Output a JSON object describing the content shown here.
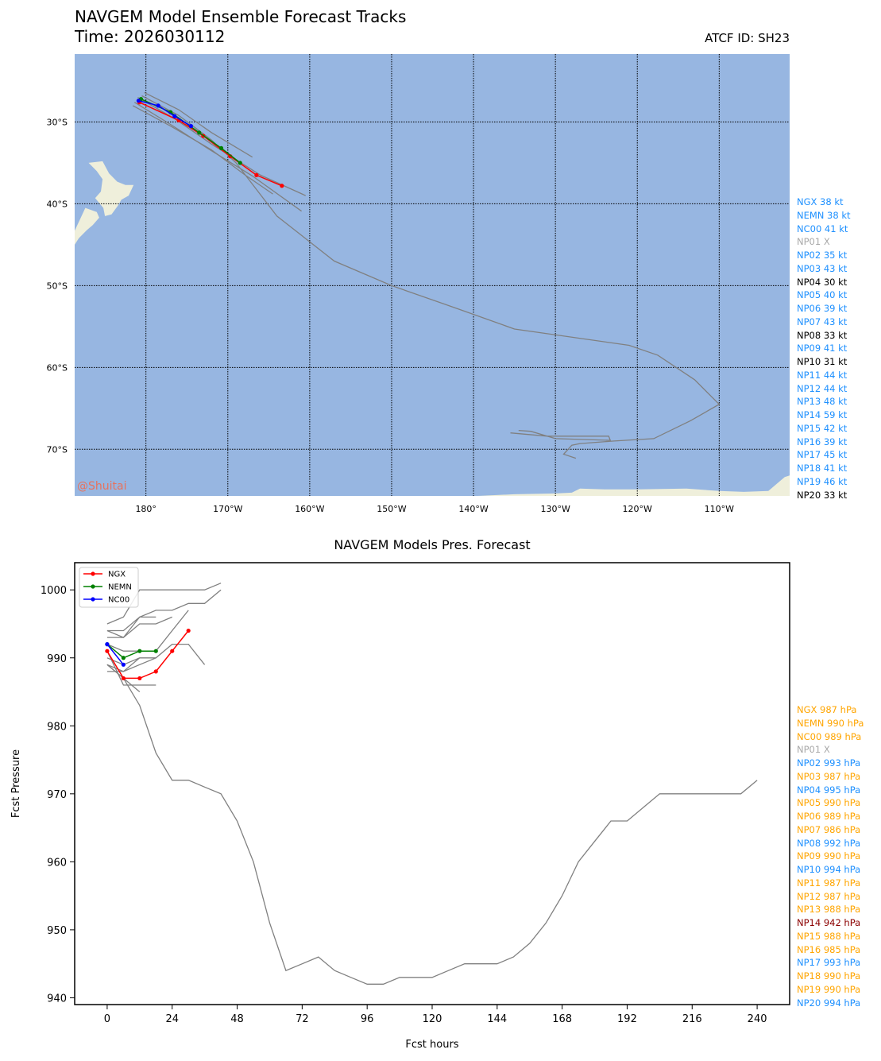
{
  "header": {
    "title": "NAVGEM Model Ensemble Forecast Tracks",
    "time": "Time: 2026030112",
    "atcf": "ATCF ID: SH23"
  },
  "watermark": "@Shuitai",
  "colors": {
    "ocean": "#97b6e1",
    "land": "#efefdb",
    "member": "#808080",
    "NGX": "#ff0000",
    "NEMN": "#008000",
    "NC00": "#0000ff",
    "blue_text": "#1e90ff",
    "orange_text": "#ffa500",
    "gray_text": "#a9a9a9",
    "dark_red_text": "#8b0000"
  },
  "track_intensity_list": [
    {
      "text": "NGX 38 kt",
      "color": "#1e90ff"
    },
    {
      "text": "NEMN 38 kt",
      "color": "#1e90ff"
    },
    {
      "text": "NC00 41 kt",
      "color": "#1e90ff"
    },
    {
      "text": "NP01 X",
      "color": "#a9a9a9"
    },
    {
      "text": "NP02 35 kt",
      "color": "#1e90ff"
    },
    {
      "text": "NP03 43 kt",
      "color": "#1e90ff"
    },
    {
      "text": "NP04 30 kt",
      "color": "#000000"
    },
    {
      "text": "NP05 40 kt",
      "color": "#1e90ff"
    },
    {
      "text": "NP06 39 kt",
      "color": "#1e90ff"
    },
    {
      "text": "NP07 43 kt",
      "color": "#1e90ff"
    },
    {
      "text": "NP08 33 kt",
      "color": "#000000"
    },
    {
      "text": "NP09 41 kt",
      "color": "#1e90ff"
    },
    {
      "text": "NP10 31 kt",
      "color": "#000000"
    },
    {
      "text": "NP11 44 kt",
      "color": "#1e90ff"
    },
    {
      "text": "NP12 44 kt",
      "color": "#1e90ff"
    },
    {
      "text": "NP13 48 kt",
      "color": "#1e90ff"
    },
    {
      "text": "NP14 59 kt",
      "color": "#1e90ff"
    },
    {
      "text": "NP15 42 kt",
      "color": "#1e90ff"
    },
    {
      "text": "NP16 39 kt",
      "color": "#1e90ff"
    },
    {
      "text": "NP17 45 kt",
      "color": "#1e90ff"
    },
    {
      "text": "NP18 41 kt",
      "color": "#1e90ff"
    },
    {
      "text": "NP19 46 kt",
      "color": "#1e90ff"
    },
    {
      "text": "NP20 33 kt",
      "color": "#000000"
    }
  ],
  "pressure_list": [
    {
      "text": "NGX 987 hPa",
      "color": "#ffa500"
    },
    {
      "text": "NEMN 990 hPa",
      "color": "#ffa500"
    },
    {
      "text": "NC00 989 hPa",
      "color": "#ffa500"
    },
    {
      "text": "NP01 X",
      "color": "#a9a9a9"
    },
    {
      "text": "NP02 993 hPa",
      "color": "#1e90ff"
    },
    {
      "text": "NP03 987 hPa",
      "color": "#ffa500"
    },
    {
      "text": "NP04 995 hPa",
      "color": "#1e90ff"
    },
    {
      "text": "NP05 990 hPa",
      "color": "#ffa500"
    },
    {
      "text": "NP06 989 hPa",
      "color": "#ffa500"
    },
    {
      "text": "NP07 986 hPa",
      "color": "#ffa500"
    },
    {
      "text": "NP08 992 hPa",
      "color": "#1e90ff"
    },
    {
      "text": "NP09 990 hPa",
      "color": "#ffa500"
    },
    {
      "text": "NP10 994 hPa",
      "color": "#1e90ff"
    },
    {
      "text": "NP11 987 hPa",
      "color": "#ffa500"
    },
    {
      "text": "NP12 987 hPa",
      "color": "#ffa500"
    },
    {
      "text": "NP13 988 hPa",
      "color": "#ffa500"
    },
    {
      "text": "NP14 942 hPa",
      "color": "#8b0000"
    },
    {
      "text": "NP15 988 hPa",
      "color": "#ffa500"
    },
    {
      "text": "NP16 985 hPa",
      "color": "#ffa500"
    },
    {
      "text": "NP17 993 hPa",
      "color": "#1e90ff"
    },
    {
      "text": "NP18 990 hPa",
      "color": "#ffa500"
    },
    {
      "text": "NP19 990 hPa",
      "color": "#ffa500"
    },
    {
      "text": "NP20 994 hPa",
      "color": "#1e90ff"
    }
  ],
  "chart_data": [
    {
      "type": "map-tracks",
      "lon_ticks": [
        180,
        -170,
        -160,
        -150,
        -140,
        -130,
        -120,
        -110
      ],
      "lon_tick_labels": [
        "180°",
        "170°W",
        "160°W",
        "150°W",
        "140°W",
        "130°W",
        "120°W",
        "110°W"
      ],
      "lat_ticks": [
        -30,
        -40,
        -50,
        -60,
        -70
      ],
      "lat_tick_labels": [
        "30°S",
        "40°S",
        "50°S",
        "60°S",
        "70°S"
      ],
      "lon_range": [
        171.3,
        -101.4
      ],
      "lat_range": [
        -21.7,
        -75.7
      ],
      "grid": true,
      "land": [
        {
          "name": "new-zealand-north-island",
          "points": [
            [
              174.7,
              -34.8
            ],
            [
              175.5,
              -36.3
            ],
            [
              176.5,
              -37.3
            ],
            [
              177.5,
              -37.7
            ],
            [
              178.5,
              -37.7
            ],
            [
              177.9,
              -39.0
            ],
            [
              177.0,
              -39.5
            ],
            [
              176.6,
              -40.2
            ],
            [
              175.8,
              -41.3
            ],
            [
              175.0,
              -41.5
            ],
            [
              174.8,
              -40.5
            ],
            [
              173.8,
              -39.3
            ],
            [
              174.5,
              -38.5
            ],
            [
              174.7,
              -37.0
            ],
            [
              174.0,
              -36.0
            ],
            [
              173.0,
              -35.0
            ]
          ]
        },
        {
          "name": "new-zealand-south-island",
          "points": [
            [
              172.6,
              -40.5
            ],
            [
              174.0,
              -41.0
            ],
            [
              174.3,
              -41.7
            ],
            [
              173.5,
              -42.6
            ],
            [
              172.8,
              -43.2
            ],
            [
              171.8,
              -44.2
            ],
            [
              171.3,
              -45.0
            ],
            [
              171.3,
              -43.3
            ],
            [
              172.0,
              -41.8
            ]
          ]
        },
        {
          "name": "antarctic-coast",
          "points": [
            [
              -139.5,
              -75.7
            ],
            [
              -135.0,
              -75.5
            ],
            [
              -130.0,
              -75.4
            ],
            [
              -128.0,
              -75.3
            ],
            [
              -127.0,
              -74.8
            ],
            [
              -124.0,
              -74.9
            ],
            [
              -120.0,
              -74.9
            ],
            [
              -114.0,
              -74.8
            ],
            [
              -110.0,
              -75.1
            ],
            [
              -107.0,
              -75.2
            ],
            [
              -104.0,
              -75.1
            ],
            [
              -102.0,
              -73.4
            ],
            [
              -101.4,
              -73.2
            ],
            [
              -101.4,
              -75.7
            ]
          ]
        }
      ],
      "tracks": [
        {
          "name": "NGX",
          "color": "#ff0000",
          "markers": true,
          "points": [
            [
              179.2,
              -27.6
            ],
            [
              -176.0,
              -29.8
            ],
            [
              -173.0,
              -31.7
            ],
            [
              -169.7,
              -34.2
            ],
            [
              -166.5,
              -36.5
            ],
            [
              -163.4,
              -37.8
            ]
          ]
        },
        {
          "name": "NEMN",
          "color": "#008000",
          "markers": true,
          "points": [
            [
              179.4,
              -27.2
            ],
            [
              -177.0,
              -28.8
            ],
            [
              -173.5,
              -31.3
            ],
            [
              -170.8,
              -33.2
            ],
            [
              -168.5,
              -35.0
            ]
          ]
        },
        {
          "name": "NC00",
          "color": "#0000ff",
          "markers": true,
          "points": [
            [
              179.1,
              -27.4
            ],
            [
              -178.5,
              -28.0
            ],
            [
              -176.5,
              -29.3
            ],
            [
              -174.5,
              -30.5
            ]
          ]
        },
        {
          "name": "member",
          "color": "#808080",
          "markers": false,
          "points": [
            [
              179.8,
              -26.4
            ],
            [
              -176.0,
              -28.5
            ],
            [
              -172.0,
              -31.3
            ],
            [
              -167.0,
              -34.3
            ]
          ]
        },
        {
          "name": "member",
          "color": "#808080",
          "markers": false,
          "points": [
            [
              179.0,
              -27.0
            ],
            [
              -176.5,
              -29.6
            ],
            [
              -172.0,
              -32.7
            ],
            [
              -166.0,
              -36.5
            ],
            [
              -160.5,
              -39.0
            ]
          ]
        },
        {
          "name": "member",
          "color": "#808080",
          "markers": false,
          "points": [
            [
              178.6,
              -27.6
            ],
            [
              -177.0,
              -30.3
            ],
            [
              -172.5,
              -33.2
            ],
            [
              -167.0,
              -36.6
            ],
            [
              -161.0,
              -40.9
            ]
          ]
        },
        {
          "name": "member",
          "color": "#808080",
          "markers": false,
          "points": [
            [
              178.4,
              -28.0
            ],
            [
              -177.0,
              -30.5
            ],
            [
              -172.0,
              -33.4
            ],
            [
              -168.0,
              -36.4
            ],
            [
              -164.5,
              -38.8
            ]
          ]
        },
        {
          "name": "member",
          "color": "#808080",
          "markers": false,
          "points": [
            [
              179.5,
              -26.8
            ],
            [
              -176.0,
              -29.2
            ],
            [
              -172.0,
              -32.2
            ],
            [
              -169.0,
              -35.0
            ],
            [
              -164.0,
              -41.5
            ],
            [
              -157.0,
              -47.0
            ],
            [
              -150.0,
              -50.0
            ],
            [
              -142.0,
              -52.8
            ],
            [
              -135.0,
              -55.3
            ],
            [
              -121.0,
              -57.3
            ],
            [
              -117.5,
              -58.5
            ],
            [
              -113.0,
              -61.5
            ],
            [
              -110.0,
              -64.5
            ],
            [
              -113.5,
              -66.5
            ],
            [
              -118.0,
              -68.7
            ],
            [
              -123.0,
              -69.0
            ],
            [
              -127.0,
              -69.3
            ],
            [
              -128.0,
              -69.5
            ],
            [
              -129.0,
              -70.6
            ],
            [
              -127.5,
              -71.1
            ]
          ]
        },
        {
          "name": "member",
          "color": "#808080",
          "markers": false,
          "points": [
            [
              -135.5,
              -68.0
            ],
            [
              -131.0,
              -68.4
            ],
            [
              -123.5,
              -68.4
            ],
            [
              -123.3,
              -68.9
            ],
            [
              -130.0,
              -68.7
            ],
            [
              -133.0,
              -67.8
            ],
            [
              -134.5,
              -67.7
            ]
          ]
        }
      ]
    },
    {
      "type": "line",
      "title": "NAVGEM Models Pres. Forecast",
      "xlabel": "Fcst hours",
      "ylabel": "Fcst Pressure",
      "xticks": [
        0,
        24,
        48,
        72,
        96,
        120,
        144,
        168,
        192,
        216,
        240
      ],
      "yticks": [
        940,
        950,
        960,
        970,
        980,
        990,
        1000
      ],
      "xlim": [
        -12,
        252
      ],
      "ylim": [
        939,
        1004
      ],
      "legend": {
        "placement": "top-left",
        "entries": [
          "NGX",
          "NEMN",
          "NC00"
        ]
      },
      "series": [
        {
          "name": "NGX",
          "color": "#ff0000",
          "markers": true,
          "x": [
            0,
            6,
            12,
            18,
            24,
            30
          ],
          "y": [
            991,
            987,
            987,
            988,
            991,
            994
          ]
        },
        {
          "name": "NEMN",
          "color": "#008000",
          "markers": true,
          "x": [
            0,
            6,
            12,
            18
          ],
          "y": [
            992,
            990,
            991,
            991
          ]
        },
        {
          "name": "NC00",
          "color": "#0000ff",
          "markers": true,
          "x": [
            0,
            6
          ],
          "y": [
            992,
            989
          ]
        },
        {
          "color": "#808080",
          "markers": false,
          "x": [
            0,
            6,
            12,
            18,
            24,
            30,
            36,
            42
          ],
          "y": [
            995,
            996,
            1000,
            1000,
            1000,
            1000,
            1000,
            1001
          ]
        },
        {
          "color": "#808080",
          "markers": false,
          "x": [
            0,
            6,
            12,
            18,
            24,
            30,
            36,
            42
          ],
          "y": [
            994,
            994,
            996,
            997,
            997,
            998,
            998,
            1000
          ]
        },
        {
          "color": "#808080",
          "markers": false,
          "x": [
            0,
            6,
            12,
            18,
            24
          ],
          "y": [
            993,
            993,
            995,
            995,
            996
          ]
        },
        {
          "color": "#808080",
          "markers": false,
          "x": [
            0,
            6,
            12,
            18
          ],
          "y": [
            994,
            993,
            996,
            996
          ]
        },
        {
          "color": "#808080",
          "markers": false,
          "x": [
            0,
            6,
            12,
            18,
            24,
            30
          ],
          "y": [
            992,
            991,
            991,
            991,
            994,
            997
          ]
        },
        {
          "color": "#808080",
          "markers": false,
          "x": [
            0,
            6,
            12,
            18,
            24,
            30,
            36
          ],
          "y": [
            989,
            988,
            989,
            990,
            992,
            992,
            989
          ]
        },
        {
          "color": "#808080",
          "markers": false,
          "x": [
            0,
            6,
            12
          ],
          "y": [
            988,
            988,
            990
          ]
        },
        {
          "color": "#808080",
          "markers": false,
          "x": [
            0,
            6,
            12
          ],
          "y": [
            989,
            987,
            985
          ]
        },
        {
          "color": "#808080",
          "markers": false,
          "x": [
            0,
            6,
            12,
            18
          ],
          "y": [
            990,
            989,
            990,
            990
          ]
        },
        {
          "color": "#808080",
          "markers": false,
          "x": [
            0,
            6,
            12,
            18
          ],
          "y": [
            991,
            986,
            986,
            986
          ]
        },
        {
          "color": "#808080",
          "markers": false,
          "x": [
            0,
            6,
            12,
            18,
            24,
            30,
            36,
            42,
            48,
            54,
            60,
            66,
            72,
            78,
            84,
            90,
            96,
            102,
            108,
            114,
            120,
            126,
            132,
            138,
            144,
            150,
            156,
            162,
            168,
            174,
            180,
            186,
            192,
            198,
            204,
            210,
            216,
            222,
            228,
            234,
            240
          ],
          "y": [
            989,
            987,
            983,
            976,
            972,
            972,
            971,
            970,
            966,
            960,
            951,
            944,
            945,
            946,
            944,
            943,
            942,
            942,
            943,
            943,
            943,
            944,
            945,
            945,
            945,
            946,
            948,
            951,
            955,
            960,
            963,
            966,
            966,
            968,
            970,
            970,
            970,
            970,
            970,
            970,
            972
          ]
        }
      ]
    }
  ]
}
